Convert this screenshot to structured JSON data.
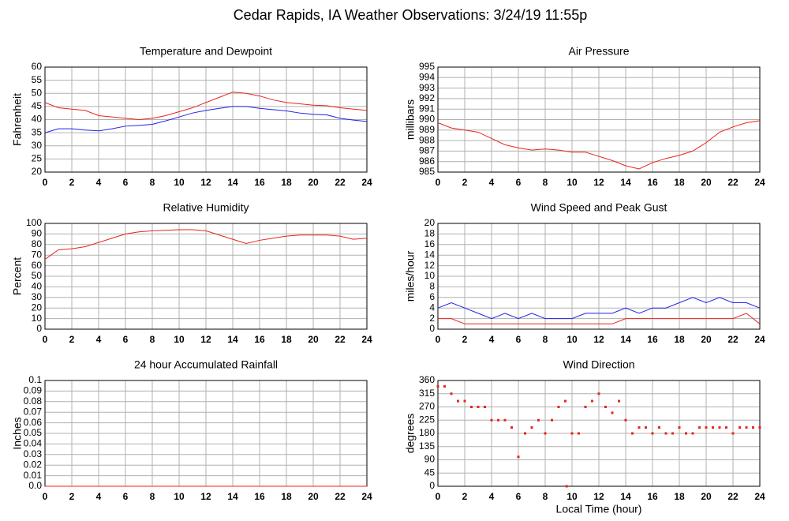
{
  "title": "Cedar Rapids, IA Weather Observations: 3/24/19 11:55p",
  "chart_data": [
    {
      "type": "line",
      "title": "Temperature and Dewpoint",
      "ylabel": "Fahrenheit",
      "x": [
        0,
        1,
        2,
        3,
        4,
        5,
        6,
        7,
        8,
        9,
        10,
        11,
        12,
        13,
        14,
        15,
        16,
        17,
        18,
        19,
        20,
        21,
        22,
        23,
        24
      ],
      "series": [
        {
          "color": "#e8231f",
          "values": [
            46.5,
            44.5,
            44,
            43.5,
            41.5,
            41,
            40.5,
            40,
            40.5,
            41.5,
            43,
            44.5,
            46.5,
            48.5,
            50.5,
            50,
            49,
            47.5,
            46.5,
            46,
            45.5,
            45.3,
            44.5,
            44,
            43.5
          ]
        },
        {
          "color": "#1f23e8",
          "values": [
            35,
            36.5,
            36.5,
            36,
            35.7,
            36.5,
            37.5,
            37.8,
            38.2,
            39.5,
            41,
            42.5,
            43.5,
            44.3,
            45,
            45,
            44.3,
            43.8,
            43.3,
            42.5,
            42,
            41.8,
            40.5,
            39.8,
            39.3
          ]
        }
      ],
      "xlim": [
        0,
        24
      ],
      "xticks": [
        0,
        2,
        4,
        6,
        8,
        10,
        12,
        14,
        16,
        18,
        20,
        22,
        24
      ],
      "ylim": [
        20,
        60
      ],
      "yticks": [
        20,
        25,
        30,
        35,
        40,
        45,
        50,
        55,
        60
      ],
      "grid": true
    },
    {
      "type": "line",
      "title": "Air Pressure",
      "ylabel": "millibars",
      "x": [
        0,
        1,
        2,
        3,
        4,
        5,
        6,
        7,
        8,
        9,
        10,
        11,
        12,
        13,
        14,
        15,
        16,
        17,
        18,
        19,
        20,
        21,
        22,
        23,
        24
      ],
      "series": [
        {
          "color": "#e8231f",
          "values": [
            989.7,
            989.2,
            989.0,
            988.8,
            988.2,
            987.6,
            987.3,
            987.1,
            987.2,
            987.1,
            986.9,
            986.9,
            986.5,
            986.1,
            985.6,
            985.3,
            985.9,
            986.3,
            986.6,
            987.0,
            987.8,
            988.8,
            989.3,
            989.7,
            989.9
          ]
        }
      ],
      "xlim": [
        0,
        24
      ],
      "xticks": [
        0,
        2,
        4,
        6,
        8,
        10,
        12,
        14,
        16,
        18,
        20,
        22,
        24
      ],
      "ylim": [
        985,
        995
      ],
      "yticks": [
        985,
        986,
        987,
        988,
        989,
        990,
        991,
        992,
        993,
        994,
        995
      ],
      "grid": true
    },
    {
      "type": "line",
      "title": "Relative Humidity",
      "ylabel": "Percent",
      "x": [
        0,
        1,
        2,
        3,
        4,
        5,
        6,
        7,
        8,
        9,
        10,
        11,
        12,
        13,
        14,
        15,
        16,
        17,
        18,
        19,
        20,
        21,
        22,
        23,
        24
      ],
      "series": [
        {
          "color": "#e8231f",
          "values": [
            66,
            75,
            76,
            78,
            82,
            86,
            90,
            92,
            93,
            93.5,
            94,
            94,
            93,
            89,
            85,
            81,
            84,
            86,
            88,
            89,
            89,
            89,
            88,
            85,
            86
          ]
        }
      ],
      "xlim": [
        0,
        24
      ],
      "xticks": [
        0,
        2,
        4,
        6,
        8,
        10,
        12,
        14,
        16,
        18,
        20,
        22,
        24
      ],
      "ylim": [
        0,
        100
      ],
      "yticks": [
        0,
        10,
        20,
        30,
        40,
        50,
        60,
        70,
        80,
        90,
        100
      ],
      "grid": true
    },
    {
      "type": "line",
      "title": "Wind Speed and Peak Gust",
      "ylabel": "miles/hour",
      "x": [
        0,
        1,
        2,
        3,
        4,
        5,
        6,
        7,
        8,
        9,
        10,
        11,
        12,
        13,
        14,
        15,
        16,
        17,
        18,
        19,
        20,
        21,
        22,
        23,
        24
      ],
      "series": [
        {
          "color": "#1f23e8",
          "values": [
            4,
            5,
            4,
            3,
            2,
            3,
            2,
            3,
            2,
            2,
            2,
            3,
            3,
            3,
            4,
            3,
            4,
            4,
            5,
            6,
            5,
            6,
            5,
            5,
            4
          ]
        },
        {
          "color": "#e8231f",
          "values": [
            2,
            2,
            1,
            1,
            1,
            1,
            1,
            1,
            1,
            1,
            1,
            1,
            1,
            1,
            2,
            2,
            2,
            2,
            2,
            2,
            2,
            2,
            2,
            3,
            1
          ]
        }
      ],
      "xlim": [
        0,
        24
      ],
      "xticks": [
        0,
        2,
        4,
        6,
        8,
        10,
        12,
        14,
        16,
        18,
        20,
        22,
        24
      ],
      "ylim": [
        0,
        20
      ],
      "yticks": [
        0,
        2,
        4,
        6,
        8,
        10,
        12,
        14,
        16,
        18,
        20
      ],
      "grid": true
    },
    {
      "type": "line",
      "title": "24 hour Accumulated Rainfall",
      "ylabel": "Inches",
      "x": [
        0,
        24
      ],
      "series": [
        {
          "color": "#e8231f",
          "values": [
            0,
            0
          ]
        }
      ],
      "xlim": [
        0,
        24
      ],
      "xticks": [
        0,
        2,
        4,
        6,
        8,
        10,
        12,
        14,
        16,
        18,
        20,
        22,
        24
      ],
      "ylim": [
        0,
        0.1
      ],
      "yticks": [
        {
          "value": 0,
          "label": "0.0"
        },
        0.01,
        0.02,
        0.03,
        0.04,
        0.05,
        0.06,
        0.07,
        0.08,
        0.09,
        0.1
      ],
      "grid": true
    },
    {
      "type": "scatter",
      "title": "Wind Direction",
      "ylabel": "degrees",
      "xlabel": "Local Time (hour)",
      "color": "#e8231f",
      "x": [
        0,
        0.5,
        1,
        1.5,
        2,
        2.5,
        3,
        3.5,
        4,
        4.5,
        5,
        5.5,
        6,
        6.5,
        7,
        7.5,
        8,
        8.5,
        9,
        9.5,
        9.6,
        10,
        10.5,
        11,
        11.5,
        12,
        12.5,
        13,
        13.5,
        14,
        14.5,
        15,
        15.5,
        16,
        16.5,
        17,
        17.5,
        18,
        18.5,
        19,
        19.5,
        20,
        20.5,
        21,
        21.5,
        22,
        22.5,
        23,
        23.5,
        24
      ],
      "values": [
        340,
        340,
        315,
        290,
        290,
        270,
        270,
        270,
        225,
        225,
        225,
        200,
        100,
        180,
        200,
        225,
        180,
        225,
        270,
        290,
        0,
        180,
        180,
        270,
        290,
        315,
        270,
        250,
        290,
        225,
        180,
        200,
        200,
        180,
        200,
        180,
        180,
        200,
        180,
        180,
        200,
        200,
        200,
        200,
        200,
        180,
        200,
        200,
        200,
        200
      ],
      "xlim": [
        0,
        24
      ],
      "xticks": [
        0,
        2,
        4,
        6,
        8,
        10,
        12,
        14,
        16,
        18,
        20,
        22,
        24
      ],
      "ylim": [
        0,
        360
      ],
      "yticks": [
        0,
        45,
        90,
        135,
        180,
        225,
        270,
        315,
        360
      ],
      "grid": true
    }
  ]
}
